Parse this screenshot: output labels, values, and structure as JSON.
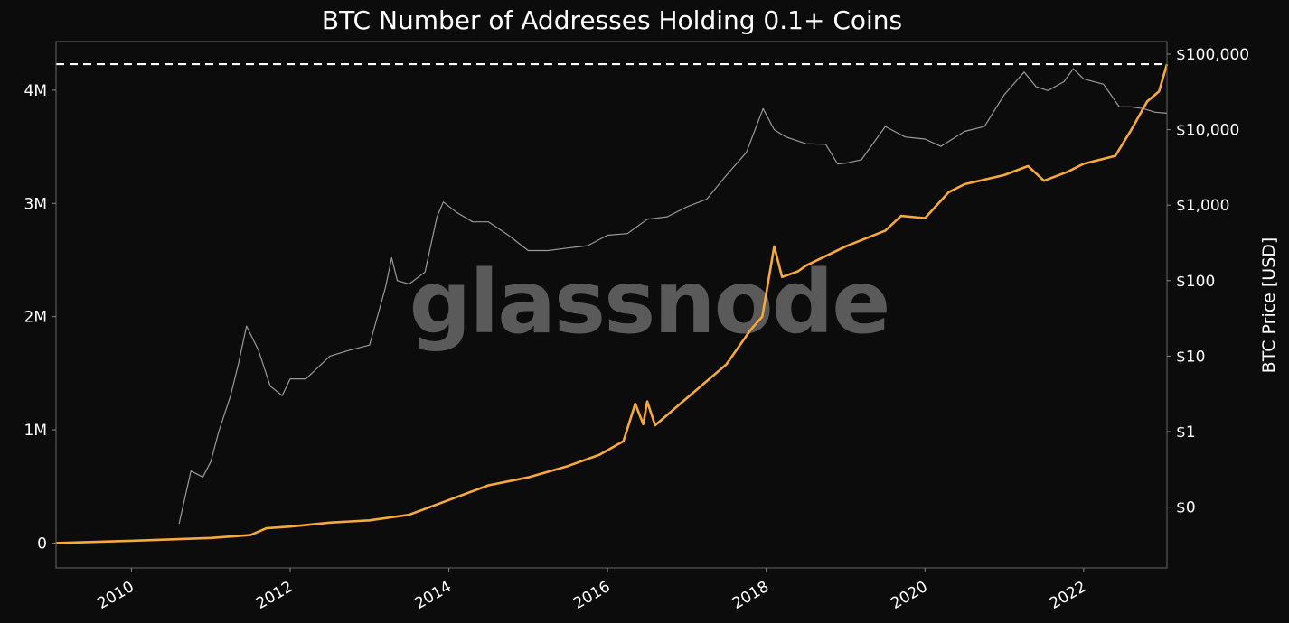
{
  "chart_data": {
    "type": "line",
    "title": "BTC Number of Addresses Holding 0.1+ Coins",
    "xlabel": "",
    "ylabel": "",
    "y2label": "BTC Price [USD]",
    "watermark": "glassnode",
    "xlim": [
      2009.05,
      2023.05
    ],
    "ylim": [
      -220000,
      4430000
    ],
    "y2_log": true,
    "x_ticks": [
      "2010",
      "2012",
      "2014",
      "2016",
      "2018",
      "2020",
      "2022"
    ],
    "x_tick_values": [
      2010,
      2012,
      2014,
      2016,
      2018,
      2020,
      2022
    ],
    "y_ticks": [
      "0",
      "1M",
      "2M",
      "3M",
      "4M"
    ],
    "y_tick_values": [
      0,
      1000000,
      2000000,
      3000000,
      4000000
    ],
    "y2_ticks": [
      "$0",
      "$1",
      "$10",
      "$100",
      "$1,000",
      "$10,000",
      "$100,000"
    ],
    "y2_tick_values": [
      0.1,
      1,
      10,
      100,
      1000,
      10000,
      100000
    ],
    "grid": false,
    "colors": {
      "addresses": "#f7a93b",
      "price": "#9a9a9a",
      "ath_line": "#ffffff",
      "background": "#0c0c0c",
      "frame": "#666666"
    },
    "series": [
      {
        "key": "addresses",
        "color": "#f7a93b",
        "x": [
          2009.05,
          2010.0,
          2011.0,
          2011.5,
          2011.7,
          2012.0,
          2012.5,
          2013.0,
          2013.5,
          2014.0,
          2014.5,
          2015.0,
          2015.5,
          2015.9,
          2016.2,
          2016.35,
          2016.45,
          2016.5,
          2016.6,
          2016.7,
          2016.8,
          2017.0,
          2017.5,
          2017.8,
          2017.95,
          2018.1,
          2018.2,
          2018.4,
          2018.5,
          2019.0,
          2019.5,
          2019.7,
          2020.0,
          2020.3,
          2020.5,
          2021.0,
          2021.3,
          2021.5,
          2021.8,
          2022.0,
          2022.4,
          2022.6,
          2022.8,
          2022.95,
          2023.05
        ],
        "y": [
          0,
          20000,
          45000,
          70000,
          130000,
          145000,
          180000,
          200000,
          250000,
          380000,
          510000,
          580000,
          680000,
          780000,
          900000,
          1230000,
          1050000,
          1250000,
          1040000,
          1100000,
          1160000,
          1280000,
          1580000,
          1880000,
          2000000,
          2620000,
          2350000,
          2400000,
          2450000,
          2620000,
          2760000,
          2890000,
          2870000,
          3100000,
          3170000,
          3250000,
          3330000,
          3200000,
          3280000,
          3350000,
          3420000,
          3650000,
          3900000,
          3990000,
          4230000
        ]
      },
      {
        "key": "price",
        "color": "#9a9a9a",
        "x": [
          2010.6,
          2010.75,
          2010.9,
          2011.0,
          2011.1,
          2011.25,
          2011.35,
          2011.45,
          2011.6,
          2011.75,
          2011.9,
          2012.0,
          2012.2,
          2012.5,
          2012.75,
          2013.0,
          2013.2,
          2013.28,
          2013.35,
          2013.5,
          2013.7,
          2013.85,
          2013.93,
          2014.1,
          2014.3,
          2014.5,
          2014.75,
          2015.0,
          2015.25,
          2015.5,
          2015.75,
          2016.0,
          2016.25,
          2016.5,
          2016.75,
          2017.0,
          2017.25,
          2017.5,
          2017.75,
          2017.96,
          2018.1,
          2018.25,
          2018.5,
          2018.75,
          2018.9,
          2019.0,
          2019.2,
          2019.5,
          2019.75,
          2020.0,
          2020.2,
          2020.5,
          2020.75,
          2021.0,
          2021.25,
          2021.4,
          2021.55,
          2021.75,
          2021.87,
          2022.0,
          2022.25,
          2022.45,
          2022.6,
          2022.75,
          2022.9,
          2023.05
        ],
        "y": [
          0.06,
          0.3,
          0.25,
          0.4,
          1.0,
          3.0,
          8.0,
          25.0,
          12.0,
          4.0,
          3.0,
          5.0,
          5.0,
          10.0,
          12.0,
          14.0,
          80.0,
          200.0,
          100.0,
          90.0,
          130.0,
          700.0,
          1100.0,
          800.0,
          600.0,
          600.0,
          400.0,
          250.0,
          250.0,
          270.0,
          290.0,
          400.0,
          420.0,
          650.0,
          700.0,
          950.0,
          1200.0,
          2500.0,
          5000.0,
          19000.0,
          10000.0,
          8000.0,
          6500.0,
          6400.0,
          3500.0,
          3600.0,
          4000.0,
          11000.0,
          8000.0,
          7500.0,
          6000.0,
          9500.0,
          11000.0,
          29000.0,
          58000.0,
          37000.0,
          33000.0,
          43000.0,
          64000.0,
          47000.0,
          40000.0,
          20000.0,
          20000.0,
          19000.0,
          17000.0,
          16500.0
        ]
      }
    ],
    "ath_line_value": 4230000
  }
}
